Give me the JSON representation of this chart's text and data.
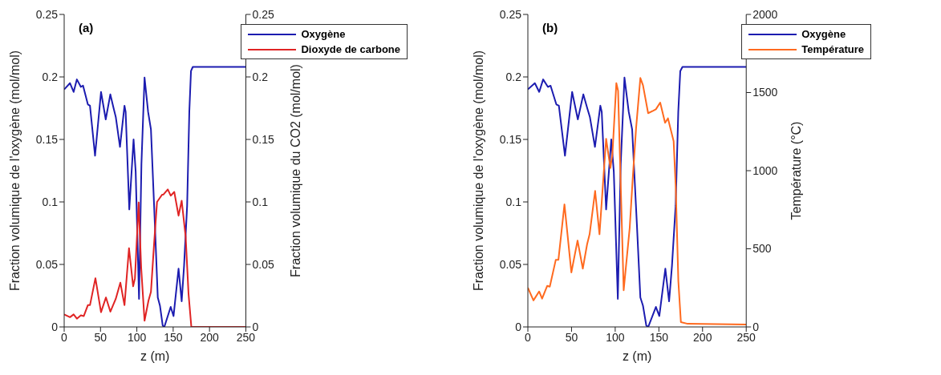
{
  "chart_data": [
    {
      "type": "line",
      "xlabel": "z (m)",
      "ylabel": "Fraction volumique de l'oxygène (mol/mol)",
      "y2label": "Fraction volumique du CO2 (mol/mol)",
      "annotations": [
        "(a)"
      ],
      "xlim": [
        0,
        250
      ],
      "xticks": [
        0,
        50,
        100,
        150,
        200,
        250
      ],
      "ylim": [
        0,
        0.25
      ],
      "yticks": [
        0,
        0.05,
        0.1,
        0.15,
        0.2,
        0.25
      ],
      "y2lim": [
        0,
        0.25
      ],
      "y2ticks": [
        0,
        0.05,
        0.1,
        0.15,
        0.2,
        0.25
      ],
      "legend": "top right",
      "series": [
        {
          "name": "Oxygène",
          "color": "#1c1cb0",
          "x": [
            0,
            8,
            13,
            17.5,
            23,
            26,
            32.6,
            35.5,
            42.5,
            50.7,
            57.2,
            63.5,
            68,
            71,
            76.8,
            83,
            84.6,
            89.6,
            95.5,
            98.4,
            103,
            106.3,
            110.6,
            115.5,
            119.4,
            124.9,
            128.8,
            131.8,
            135.6,
            137.8,
            146.6,
            150.5,
            157.4,
            161.7,
            165,
            169.2,
            172.2,
            174.5,
            177,
            250
          ],
          "values": [
            0.19,
            0.195,
            0.188,
            0.198,
            0.192,
            0.193,
            0.178,
            0.177,
            0.137,
            0.188,
            0.166,
            0.186,
            0.175,
            0.168,
            0.144,
            0.177,
            0.172,
            0.094,
            0.15,
            0.124,
            0.0225,
            0.13,
            0.1995,
            0.172,
            0.158,
            0.081,
            0.0236,
            0.017,
            0.001,
            0,
            0.016,
            0.0087,
            0.0466,
            0.0205,
            0.049,
            0.097,
            0.172,
            0.2047,
            0.208,
            0.208
          ]
        },
        {
          "name": "Dioxyde de carbone",
          "color": "#e02424",
          "axis": "y2",
          "x": [
            0,
            8,
            13,
            17.5,
            23,
            27,
            32.6,
            35.5,
            43,
            50.7,
            57.5,
            63.6,
            71,
            77.3,
            83,
            89.2,
            94.9,
            97.4,
            102.5,
            106,
            110.6,
            116,
            119.4,
            123.9,
            127.8,
            134.7,
            136.7,
            142.6,
            146.6,
            151.5,
            157.4,
            161.7,
            167.2,
            171.1,
            175,
            250
          ],
          "values": [
            0.01,
            0.0078,
            0.01,
            0.0066,
            0.0093,
            0.0087,
            0.0174,
            0.0174,
            0.039,
            0.0118,
            0.0236,
            0.0122,
            0.0225,
            0.0354,
            0.0174,
            0.063,
            0.0325,
            0.039,
            0.0996,
            0.047,
            0.005,
            0.021,
            0.028,
            0.068,
            0.1,
            0.1058,
            0.106,
            0.11,
            0.105,
            0.108,
            0.089,
            0.101,
            0.072,
            0.0267,
            0,
            0
          ]
        }
      ]
    },
    {
      "type": "line",
      "xlabel": "z (m)",
      "ylabel": "Fraction volumique de l'oxygène (mol/mol)",
      "y2label": "Température (°C)",
      "annotations": [
        "(b)"
      ],
      "xlim": [
        0,
        250
      ],
      "xticks": [
        0,
        50,
        100,
        150,
        200,
        250
      ],
      "ylim": [
        0,
        0.25
      ],
      "yticks": [
        0,
        0.05,
        0.1,
        0.15,
        0.2,
        0.25
      ],
      "y2lim": [
        0,
        2000
      ],
      "y2ticks": [
        0,
        500,
        1000,
        1500,
        2000
      ],
      "legend": "top right",
      "series": [
        {
          "name": "Oxygène",
          "color": "#1c1cb0",
          "x": [
            0,
            8,
            13,
            17.5,
            23,
            26,
            32.6,
            35.5,
            42.5,
            50.7,
            57.2,
            63.5,
            68,
            71,
            76.8,
            83,
            84.6,
            89.6,
            95.5,
            98.4,
            103,
            106.3,
            110.6,
            115.5,
            119.4,
            124.9,
            128.8,
            131.8,
            135.6,
            137.8,
            146.6,
            150.5,
            157.4,
            161.7,
            165,
            169.2,
            172.2,
            174.5,
            177,
            250
          ],
          "values": [
            0.19,
            0.195,
            0.188,
            0.198,
            0.192,
            0.193,
            0.178,
            0.177,
            0.137,
            0.188,
            0.166,
            0.186,
            0.175,
            0.168,
            0.144,
            0.177,
            0.172,
            0.094,
            0.15,
            0.124,
            0.0225,
            0.13,
            0.1995,
            0.172,
            0.158,
            0.081,
            0.0236,
            0.017,
            0.001,
            0,
            0.016,
            0.0087,
            0.0466,
            0.0205,
            0.049,
            0.097,
            0.172,
            0.2047,
            0.208,
            0.208
          ]
        },
        {
          "name": "Température",
          "color": "#ff6a1f",
          "axis": "y2",
          "x": [
            0,
            6.4,
            12.9,
            16.3,
            22.2,
            25.1,
            32,
            35,
            41.9,
            49.8,
            56.9,
            62.9,
            67.8,
            70.7,
            77,
            82,
            89.6,
            94.5,
            96.8,
            101.3,
            103.3,
            109.7,
            116.6,
            120,
            123.9,
            128.8,
            131.8,
            137.7,
            143.6,
            146.6,
            151.5,
            157.1,
            160.4,
            166.9,
            169.3,
            172.3,
            175.2,
            183,
            250
          ],
          "values": [
            251,
            170,
            227,
            181,
            263,
            258,
            430,
            430,
            784,
            349,
            553,
            373,
            528,
            593,
            870,
            593,
            1204,
            1017,
            1106,
            1560,
            1512,
            235,
            634,
            944,
            1271,
            1593,
            1547,
            1368,
            1384,
            1393,
            1436,
            1306,
            1335,
            1188,
            895,
            292,
            31,
            20,
            15
          ]
        }
      ]
    }
  ]
}
